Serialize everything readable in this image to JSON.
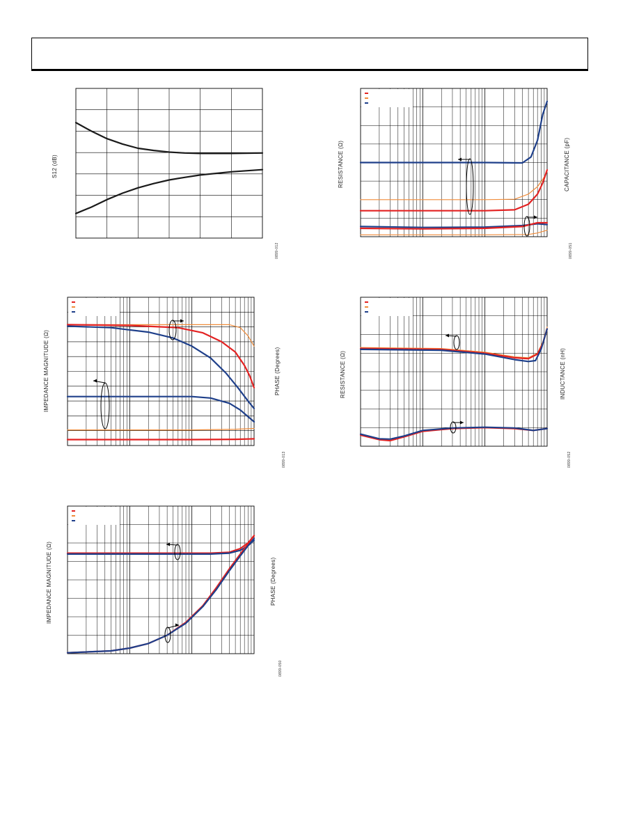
{
  "page": {
    "header": ""
  },
  "panels": [
    {
      "id": "s12",
      "ylabel": "S12 (dB)",
      "y2label": "",
      "fig_id": "0899-012",
      "chart_data": {
        "type": "line",
        "xscale": "linear",
        "xlim": [
          0,
          6
        ],
        "ylim": [
          0,
          7
        ],
        "grid": true,
        "legend": [],
        "series": [
          {
            "color": "#1a1a1a",
            "points": [
              [
                0,
                5.4
              ],
              [
                0.5,
                5.0
              ],
              [
                1,
                4.65
              ],
              [
                1.5,
                4.4
              ],
              [
                2,
                4.2
              ],
              [
                2.5,
                4.1
              ],
              [
                3,
                4.02
              ],
              [
                3.5,
                3.98
              ],
              [
                4,
                3.96
              ],
              [
                5,
                3.96
              ],
              [
                6,
                3.98
              ]
            ]
          },
          {
            "color": "#1a1a1a",
            "points": [
              [
                0,
                1.15
              ],
              [
                0.5,
                1.45
              ],
              [
                1,
                1.8
              ],
              [
                1.5,
                2.1
              ],
              [
                2,
                2.35
              ],
              [
                2.5,
                2.55
              ],
              [
                3,
                2.72
              ],
              [
                3.5,
                2.84
              ],
              [
                4,
                2.95
              ],
              [
                5,
                3.1
              ],
              [
                6,
                3.2
              ]
            ]
          }
        ]
      }
    },
    {
      "id": "rc",
      "ylabel": "RESISTANCE (Ω)",
      "y2label": "CAPACITANCE (pF)",
      "fig_id": "0899-051",
      "chart_data": {
        "type": "line",
        "xscale": "log",
        "xlim": [
          1,
          1000
        ],
        "ylim": [
          0,
          8
        ],
        "grid": true,
        "legend": [
          {
            "color": "#e32222",
            "label": ""
          },
          {
            "color": "#f08c3a",
            "label": ""
          },
          {
            "color": "#1e3f8a",
            "label": ""
          }
        ],
        "series": [
          {
            "color": "#1e3f8a",
            "points": [
              [
                1,
                4.0
              ],
              [
                10,
                4.0
              ],
              [
                100,
                4.0
              ],
              [
                400,
                3.98
              ],
              [
                550,
                4.3
              ],
              [
                700,
                5.2
              ],
              [
                850,
                6.6
              ],
              [
                1000,
                7.3
              ]
            ]
          },
          {
            "color": "#f08c3a",
            "points": [
              [
                1,
                2.0
              ],
              [
                10,
                2.0
              ],
              [
                100,
                2.0
              ],
              [
                300,
                2.02
              ],
              [
                500,
                2.3
              ],
              [
                700,
                2.7
              ],
              [
                850,
                3.1
              ],
              [
                1000,
                3.5
              ]
            ]
          },
          {
            "color": "#e32222",
            "points": [
              [
                1,
                1.4
              ],
              [
                10,
                1.4
              ],
              [
                100,
                1.4
              ],
              [
                300,
                1.45
              ],
              [
                500,
                1.75
              ],
              [
                700,
                2.3
              ],
              [
                850,
                2.9
              ],
              [
                1000,
                3.6
              ]
            ]
          },
          {
            "color": "#1e3f8a",
            "points": [
              [
                1,
                0.55
              ],
              [
                10,
                0.5
              ],
              [
                100,
                0.52
              ],
              [
                400,
                0.6
              ],
              [
                700,
                0.7
              ],
              [
                1000,
                0.65
              ]
            ]
          },
          {
            "color": "#e32222",
            "points": [
              [
                1,
                0.45
              ],
              [
                10,
                0.42
              ],
              [
                100,
                0.45
              ],
              [
                400,
                0.55
              ],
              [
                700,
                0.75
              ],
              [
                1000,
                0.75
              ]
            ]
          },
          {
            "color": "#f08c3a",
            "points": [
              [
                1,
                0.1
              ],
              [
                100,
                0.1
              ],
              [
                500,
                0.12
              ],
              [
                700,
                0.2
              ],
              [
                1000,
                0.35
              ]
            ]
          }
        ]
      }
    },
    {
      "id": "imp1",
      "ylabel": "IMPEDANCE MAGNITUDE (Ω)",
      "y2label": "PHASE (Degrees)",
      "fig_id": "0899-013",
      "chart_data": {
        "type": "line",
        "xscale": "log",
        "xlim": [
          1,
          1000
        ],
        "ylim": [
          0,
          10
        ],
        "grid": true,
        "legend": [
          {
            "color": "#e32222",
            "label": ""
          },
          {
            "color": "#f08c3a",
            "label": ""
          },
          {
            "color": "#1e3f8a",
            "label": ""
          }
        ],
        "series": [
          {
            "color": "#f08c3a",
            "points": [
              [
                1,
                8.15
              ],
              [
                10,
                8.15
              ],
              [
                100,
                8.15
              ],
              [
                400,
                8.15
              ],
              [
                600,
                7.95
              ],
              [
                800,
                7.4
              ],
              [
                1000,
                6.7
              ]
            ]
          },
          {
            "color": "#e32222",
            "points": [
              [
                1,
                8.15
              ],
              [
                10,
                8.1
              ],
              [
                60,
                7.95
              ],
              [
                150,
                7.6
              ],
              [
                300,
                7.0
              ],
              [
                500,
                6.3
              ],
              [
                700,
                5.4
              ],
              [
                850,
                4.7
              ],
              [
                1000,
                3.9
              ]
            ]
          },
          {
            "color": "#1e3f8a",
            "points": [
              [
                1,
                8.05
              ],
              [
                5,
                7.95
              ],
              [
                20,
                7.65
              ],
              [
                50,
                7.25
              ],
              [
                100,
                6.7
              ],
              [
                200,
                5.9
              ],
              [
                350,
                4.9
              ],
              [
                550,
                3.9
              ],
              [
                800,
                3.0
              ],
              [
                1000,
                2.5
              ]
            ]
          },
          {
            "color": "#1e3f8a",
            "points": [
              [
                1,
                3.3
              ],
              [
                50,
                3.3
              ],
              [
                100,
                3.3
              ],
              [
                200,
                3.2
              ],
              [
                400,
                2.85
              ],
              [
                600,
                2.4
              ],
              [
                800,
                1.95
              ],
              [
                1000,
                1.6
              ]
            ]
          },
          {
            "color": "#f08c3a",
            "points": [
              [
                1,
                1.05
              ],
              [
                100,
                1.05
              ],
              [
                500,
                1.1
              ],
              [
                1000,
                1.15
              ]
            ]
          },
          {
            "color": "#e32222",
            "points": [
              [
                1,
                0.4
              ],
              [
                100,
                0.4
              ],
              [
                500,
                0.42
              ],
              [
                1000,
                0.45
              ]
            ]
          }
        ]
      }
    },
    {
      "id": "rl",
      "ylabel": "RESISTANCE (Ω)",
      "y2label": "INDUCTANCE (nH)",
      "fig_id": "0899-052",
      "chart_data": {
        "type": "line",
        "xscale": "log",
        "xlim": [
          1,
          1000
        ],
        "ylim": [
          0,
          8
        ],
        "grid": true,
        "legend": [
          {
            "color": "#e32222",
            "label": ""
          },
          {
            "color": "#f08c3a",
            "label": ""
          },
          {
            "color": "#1e3f8a",
            "label": ""
          }
        ],
        "series": [
          {
            "color": "#f08c3a",
            "points": [
              [
                1,
                5.3
              ],
              [
                20,
                5.25
              ],
              [
                100,
                5.05
              ],
              [
                300,
                4.8
              ],
              [
                500,
                4.75
              ],
              [
                700,
                5.0
              ],
              [
                850,
                5.6
              ],
              [
                1000,
                6.4
              ]
            ]
          },
          {
            "color": "#e32222",
            "points": [
              [
                1,
                5.25
              ],
              [
                20,
                5.2
              ],
              [
                100,
                5.0
              ],
              [
                300,
                4.75
              ],
              [
                500,
                4.7
              ],
              [
                700,
                4.95
              ],
              [
                850,
                5.5
              ],
              [
                1000,
                6.3
              ]
            ]
          },
          {
            "color": "#1e3f8a",
            "points": [
              [
                1,
                5.2
              ],
              [
                20,
                5.15
              ],
              [
                100,
                4.95
              ],
              [
                300,
                4.65
              ],
              [
                500,
                4.55
              ],
              [
                650,
                4.6
              ],
              [
                800,
                5.2
              ],
              [
                1000,
                6.3
              ]
            ]
          },
          {
            "color": "#e32222",
            "points": [
              [
                1,
                0.6
              ],
              [
                2,
                0.35
              ],
              [
                3,
                0.3
              ],
              [
                5,
                0.5
              ],
              [
                10,
                0.8
              ],
              [
                30,
                0.95
              ],
              [
                100,
                1.0
              ],
              [
                300,
                0.95
              ],
              [
                600,
                0.85
              ],
              [
                1000,
                0.95
              ]
            ]
          },
          {
            "color": "#1e3f8a",
            "points": [
              [
                1,
                0.65
              ],
              [
                2,
                0.4
              ],
              [
                3,
                0.38
              ],
              [
                5,
                0.55
              ],
              [
                10,
                0.85
              ],
              [
                30,
                0.98
              ],
              [
                100,
                1.02
              ],
              [
                300,
                0.98
              ],
              [
                600,
                0.85
              ],
              [
                1000,
                0.95
              ]
            ]
          }
        ]
      }
    },
    {
      "id": "imp2",
      "ylabel": "IMPEDANCE MAGNITUDE (Ω)",
      "y2label": "PHASE (Degrees)",
      "fig_id": "0899-050",
      "chart_data": {
        "type": "line",
        "xscale": "log",
        "xlim": [
          1,
          1000
        ],
        "ylim": [
          0,
          8
        ],
        "grid": true,
        "legend": [
          {
            "color": "#e32222",
            "label": ""
          },
          {
            "color": "#f08c3a",
            "label": ""
          },
          {
            "color": "#1e3f8a",
            "label": ""
          }
        ],
        "series": [
          {
            "color": "#e32222",
            "points": [
              [
                1,
                5.45
              ],
              [
                50,
                5.45
              ],
              [
                200,
                5.45
              ],
              [
                400,
                5.5
              ],
              [
                600,
                5.7
              ],
              [
                800,
                6.0
              ],
              [
                1000,
                6.4
              ]
            ]
          },
          {
            "color": "#1e3f8a",
            "points": [
              [
                1,
                5.4
              ],
              [
                50,
                5.4
              ],
              [
                200,
                5.4
              ],
              [
                400,
                5.45
              ],
              [
                600,
                5.6
              ],
              [
                800,
                5.85
              ],
              [
                1000,
                6.15
              ]
            ]
          },
          {
            "color": "#e32222",
            "points": [
              [
                1,
                0.05
              ],
              [
                5,
                0.15
              ],
              [
                10,
                0.3
              ],
              [
                20,
                0.55
              ],
              [
                40,
                1.0
              ],
              [
                80,
                1.7
              ],
              [
                150,
                2.6
              ],
              [
                250,
                3.6
              ],
              [
                400,
                4.6
              ],
              [
                600,
                5.4
              ],
              [
                800,
                5.95
              ],
              [
                1000,
                6.4
              ]
            ]
          },
          {
            "color": "#1e3f8a",
            "points": [
              [
                1,
                0.05
              ],
              [
                5,
                0.15
              ],
              [
                10,
                0.3
              ],
              [
                20,
                0.55
              ],
              [
                40,
                1.0
              ],
              [
                80,
                1.65
              ],
              [
                150,
                2.55
              ],
              [
                250,
                3.5
              ],
              [
                400,
                4.5
              ],
              [
                600,
                5.3
              ],
              [
                800,
                5.85
              ],
              [
                1000,
                6.25
              ]
            ]
          }
        ]
      }
    }
  ]
}
